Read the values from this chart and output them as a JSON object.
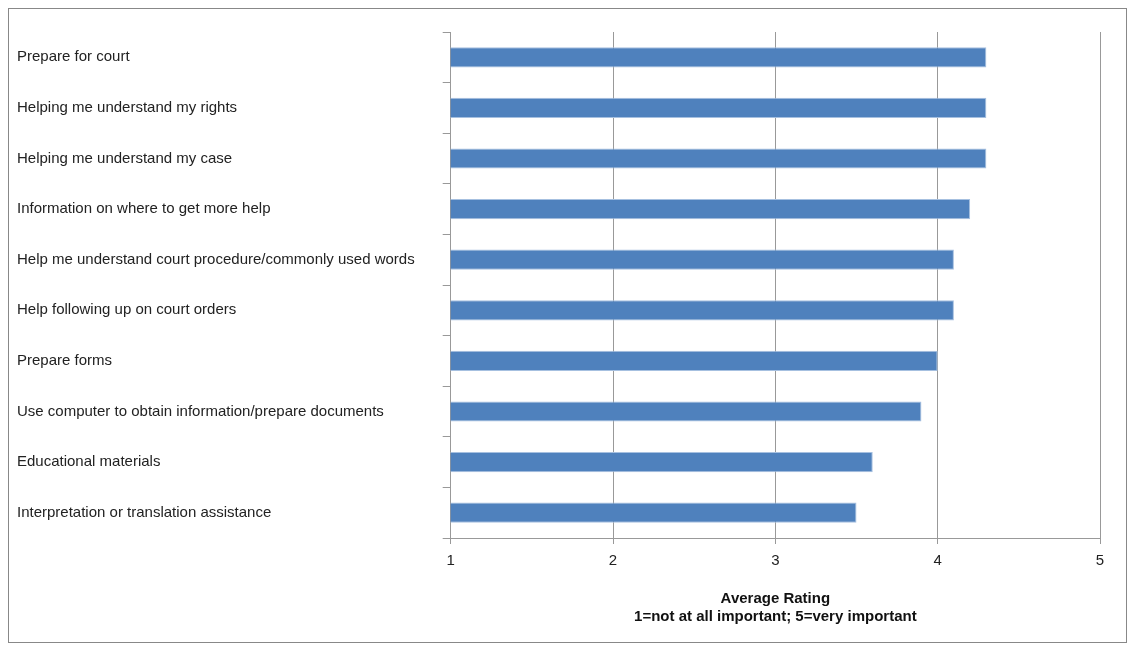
{
  "chart_data": {
    "type": "bar",
    "orientation": "horizontal",
    "categories": [
      "Prepare for court",
      "Helping me understand my rights",
      "Helping me understand my case",
      "Information on where to get more help",
      "Help me understand court procedure/commonly used words",
      "Help following up on court orders",
      "Prepare forms",
      "Use computer to obtain information/prepare documents",
      "Educational materials",
      "Interpretation or translation assistance"
    ],
    "values": [
      4.3,
      4.3,
      4.3,
      4.2,
      4.1,
      4.1,
      4.0,
      3.9,
      3.6,
      3.5
    ],
    "color": "#4f81bd",
    "xlabel": "Average Rating\n1=not at all important; 5=very important",
    "xlim": [
      1,
      5
    ],
    "xticks": [
      1,
      2,
      3,
      4,
      5
    ],
    "grid": "x",
    "legend": false
  }
}
